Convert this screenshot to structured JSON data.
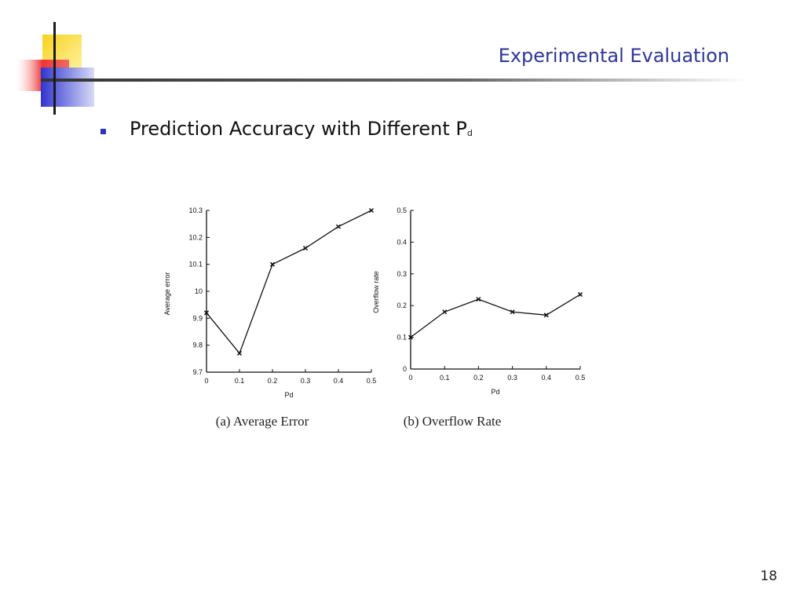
{
  "slide": {
    "title": "Experimental Evaluation",
    "bullet_text": "Prediction Accuracy with Different P",
    "bullet_subscript": "d",
    "page_number": "18"
  },
  "theme": {
    "title_color": "#2f3699",
    "bullet_color": "#2d35b8",
    "deco_yellow": "#f7d21c",
    "deco_red": "#ef3434",
    "deco_blue": "#3a3ed6"
  },
  "chart_data": [
    {
      "type": "line",
      "caption": "(a)  Average Error",
      "xlabel": "Pd",
      "ylabel": "Average error",
      "x": [
        0,
        0.1,
        0.2,
        0.3,
        0.4,
        0.5
      ],
      "xticks": [
        "0",
        "0.1",
        "0.2",
        "0.3",
        "0.4",
        "0.5"
      ],
      "yticks": [
        "9.7",
        "9.8",
        "9.9",
        "10",
        "10.1",
        "10.2",
        "10.3"
      ],
      "ylim": [
        9.7,
        10.3
      ],
      "series": [
        {
          "values": [
            9.92,
            9.77,
            10.1,
            10.16,
            10.24,
            10.3
          ]
        }
      ],
      "grid": false
    },
    {
      "type": "line",
      "caption": "(b)  Overflow Rate",
      "xlabel": "Pd",
      "ylabel": "Overflow rate",
      "x": [
        0,
        0.1,
        0.2,
        0.3,
        0.4,
        0.5
      ],
      "xticks": [
        "0",
        "0.1",
        "0.2",
        "0.3",
        "0.4",
        "0.5"
      ],
      "yticks": [
        "0",
        "0.1",
        "0.2",
        "0.3",
        "0.4",
        "0.5"
      ],
      "ylim": [
        0,
        0.5
      ],
      "series": [
        {
          "values": [
            0.1,
            0.18,
            0.22,
            0.18,
            0.17,
            0.235
          ]
        }
      ],
      "grid": false
    }
  ]
}
